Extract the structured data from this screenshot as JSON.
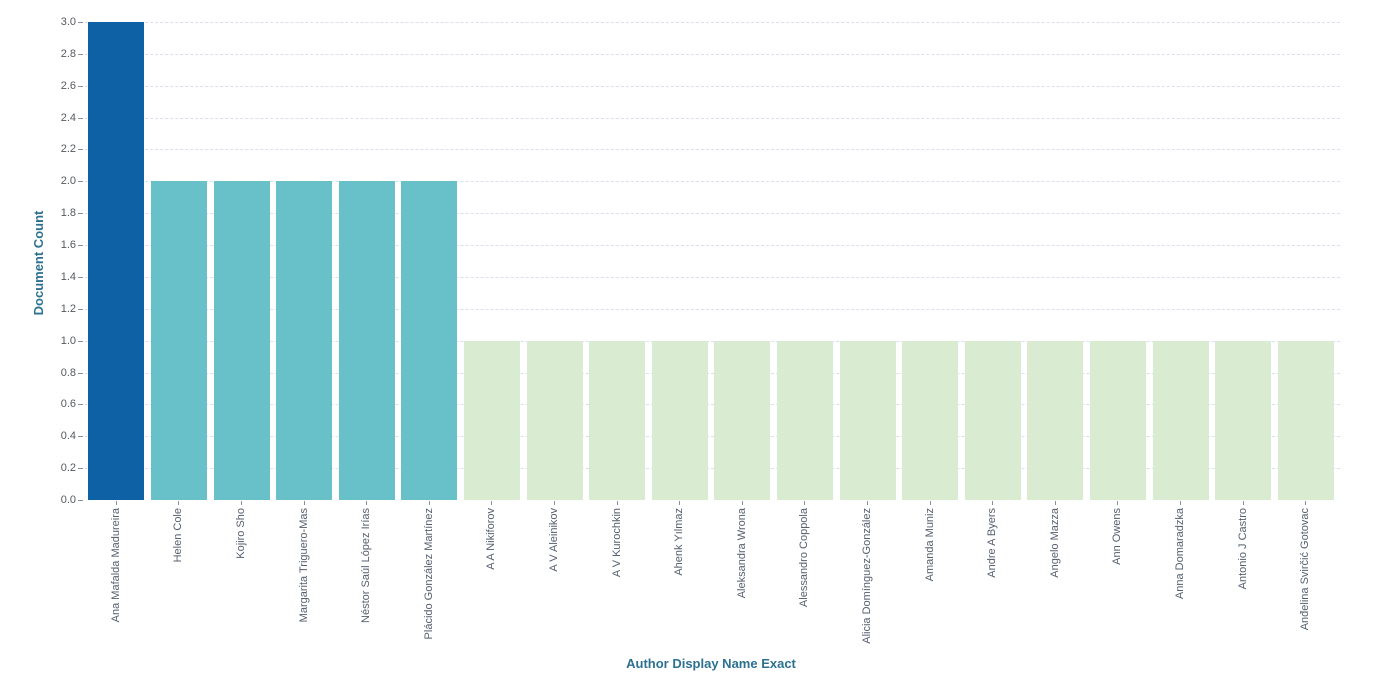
{
  "chart_data": {
    "type": "bar",
    "title": "",
    "xlabel": "Author Display Name Exact",
    "ylabel": "Document Count",
    "categories": [
      "Ana Mafalda Madureira",
      "Helen Cole",
      "Kojiro Sho",
      "Margarita Triguero-Mas",
      "Néstor Saúl López Irías",
      "Plácido González Martínez",
      "A A Nikiforov",
      "A V Aleinikov",
      "A V Kurochkin",
      "Ahenk Yılmaz",
      "Aleksandra Wrona",
      "Alessandro Coppola",
      "Alicia Domínguez-González",
      "Amanda Muniz",
      "Andre A Byers",
      "Angelo Mazza",
      "Ann Owens",
      "Anna Domaradzka",
      "Antonio J Castro",
      "Anđelina Svirčić Gotovac"
    ],
    "values": [
      3,
      2,
      2,
      2,
      2,
      2,
      1,
      1,
      1,
      1,
      1,
      1,
      1,
      1,
      1,
      1,
      1,
      1,
      1,
      1
    ],
    "ylim": [
      0,
      3
    ],
    "ytick_step": 0.2,
    "ytick_labels": [
      "0.0",
      "0.2",
      "0.4",
      "0.6",
      "0.8",
      "1.0",
      "1.2",
      "1.4",
      "1.6",
      "1.8",
      "2.0",
      "2.2",
      "2.4",
      "2.6",
      "2.8",
      "3.0"
    ],
    "grid": "horizontal-dashed",
    "legend": "none",
    "value_colors": {
      "3": "#0e61a5",
      "2": "#68c0c8",
      "1": "#d9ecd1"
    }
  },
  "colors": {
    "background": "#ffffff",
    "axis_title": "#2d7191",
    "tick_label": "#55595f",
    "tick_mark": "#8a8f99",
    "gridline": "#d9dfee"
  }
}
